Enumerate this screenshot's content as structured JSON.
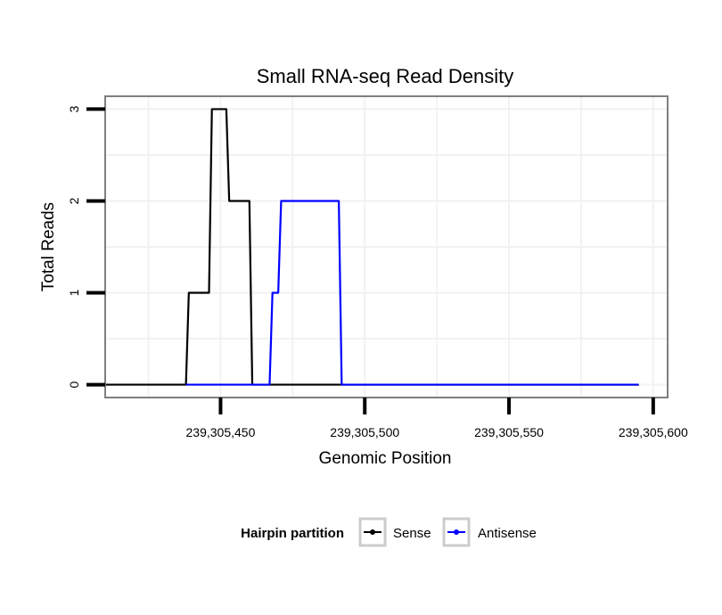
{
  "chart_data": {
    "type": "line",
    "title": "Small RNA-seq Read Density",
    "xlabel": "Genomic Position",
    "ylabel": "Total Reads",
    "xlim": [
      239305410,
      239305605
    ],
    "ylim": [
      -0.14,
      3.14
    ],
    "xticks": [
      239305450,
      239305500,
      239305550,
      239305600
    ],
    "xtick_labels": [
      "239,305,450",
      "239,305,500",
      "239,305,550",
      "239,305,600"
    ],
    "yticks": [
      0,
      1,
      2,
      3
    ],
    "ytick_labels": [
      "0",
      "1",
      "2",
      "3"
    ],
    "grid": true,
    "legend": {
      "title": "Hairpin partition",
      "position": "bottom"
    },
    "series": [
      {
        "name": "Sense",
        "color": "#000000",
        "x": [
          239305410,
          239305438,
          239305439,
          239305446,
          239305447,
          239305452,
          239305453,
          239305460,
          239305461,
          239305465,
          239305466,
          239305595
        ],
        "y": [
          0,
          0,
          1,
          1,
          3,
          3,
          2,
          2,
          0,
          0,
          0,
          0
        ]
      },
      {
        "name": "Antisense",
        "color": "#0000ff",
        "x": [
          239305438,
          239305467,
          239305468,
          239305470,
          239305471,
          239305491,
          239305492,
          239305595
        ],
        "y": [
          0,
          0,
          1,
          1,
          2,
          2,
          0,
          0
        ]
      }
    ]
  }
}
